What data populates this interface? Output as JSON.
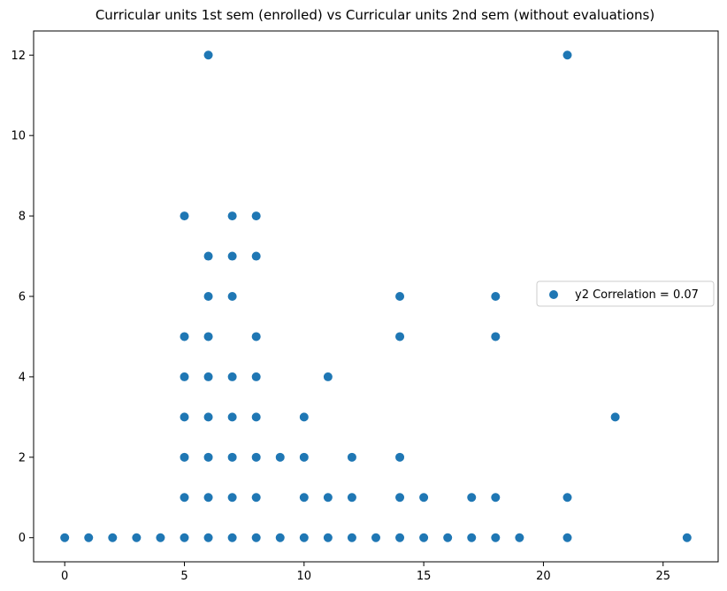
{
  "chart_data": {
    "type": "scatter",
    "title": "Curricular units 1st sem (enrolled) vs Curricular units 2nd sem (without evaluations)",
    "xlabel": "",
    "ylabel": "",
    "xlim": [
      -1.3,
      27.3
    ],
    "ylim": [
      -0.6,
      12.6
    ],
    "x_ticks": [
      "0",
      "5",
      "10",
      "15",
      "20",
      "25"
    ],
    "y_ticks": [
      "0",
      "2",
      "4",
      "6",
      "8",
      "10",
      "12"
    ],
    "grid": false,
    "legend": {
      "placement": "center-right"
    },
    "series": [
      {
        "name": "y2 Correlation = 0.07",
        "color": "#1f77b4",
        "points": [
          [
            0,
            0
          ],
          [
            1,
            0
          ],
          [
            2,
            0
          ],
          [
            3,
            0
          ],
          [
            4,
            0
          ],
          [
            5,
            0
          ],
          [
            6,
            0
          ],
          [
            7,
            0
          ],
          [
            8,
            0
          ],
          [
            9,
            0
          ],
          [
            10,
            0
          ],
          [
            11,
            0
          ],
          [
            12,
            0
          ],
          [
            13,
            0
          ],
          [
            14,
            0
          ],
          [
            15,
            0
          ],
          [
            16,
            0
          ],
          [
            17,
            0
          ],
          [
            18,
            0
          ],
          [
            19,
            0
          ],
          [
            21,
            0
          ],
          [
            26,
            0
          ],
          [
            5,
            1
          ],
          [
            6,
            1
          ],
          [
            7,
            1
          ],
          [
            8,
            1
          ],
          [
            10,
            1
          ],
          [
            11,
            1
          ],
          [
            12,
            1
          ],
          [
            14,
            1
          ],
          [
            15,
            1
          ],
          [
            17,
            1
          ],
          [
            18,
            1
          ],
          [
            21,
            1
          ],
          [
            5,
            2
          ],
          [
            6,
            2
          ],
          [
            7,
            2
          ],
          [
            8,
            2
          ],
          [
            9,
            2
          ],
          [
            10,
            2
          ],
          [
            12,
            2
          ],
          [
            14,
            2
          ],
          [
            5,
            3
          ],
          [
            6,
            3
          ],
          [
            7,
            3
          ],
          [
            8,
            3
          ],
          [
            10,
            3
          ],
          [
            23,
            3
          ],
          [
            5,
            4
          ],
          [
            6,
            4
          ],
          [
            7,
            4
          ],
          [
            8,
            4
          ],
          [
            11,
            4
          ],
          [
            5,
            5
          ],
          [
            6,
            5
          ],
          [
            8,
            5
          ],
          [
            14,
            5
          ],
          [
            18,
            5
          ],
          [
            6,
            6
          ],
          [
            7,
            6
          ],
          [
            14,
            6
          ],
          [
            18,
            6
          ],
          [
            6,
            7
          ],
          [
            7,
            7
          ],
          [
            8,
            7
          ],
          [
            5,
            8
          ],
          [
            7,
            8
          ],
          [
            8,
            8
          ],
          [
            6,
            12
          ],
          [
            21,
            12
          ]
        ]
      }
    ]
  }
}
